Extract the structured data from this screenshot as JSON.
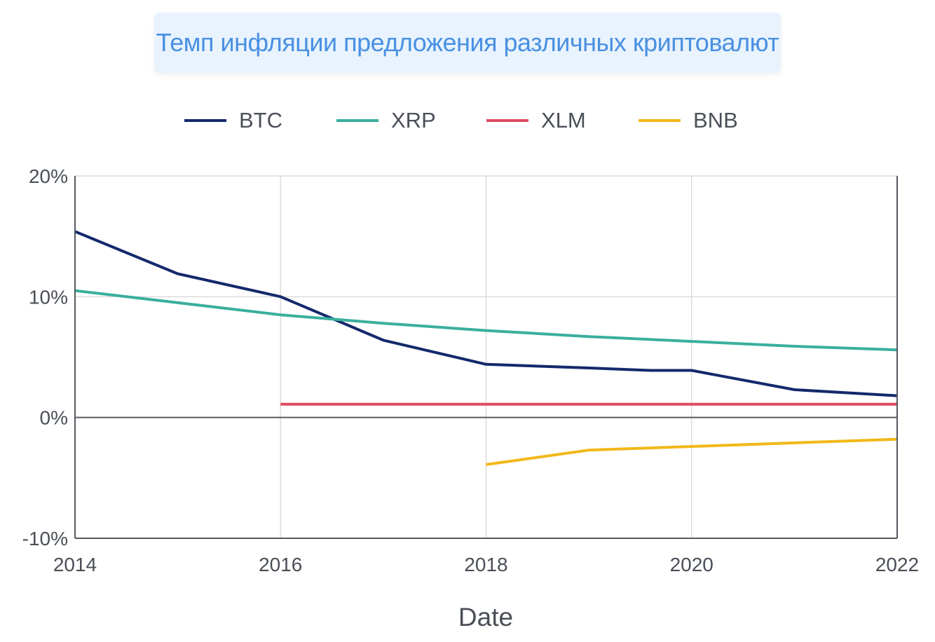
{
  "chart_data": {
    "type": "line",
    "title": "Темп инфляции предложения различных криптовалют",
    "xlabel": "Date",
    "ylabel": "",
    "xlim": [
      2014,
      2022
    ],
    "ylim": [
      -10,
      20
    ],
    "x_ticks": [
      "2014",
      "2016",
      "2018",
      "2020",
      "2022"
    ],
    "y_ticks": [
      {
        "value": 20,
        "label": "20%"
      },
      {
        "value": 10,
        "label": "10%"
      },
      {
        "value": 0,
        "label": "0%"
      },
      {
        "value": -10,
        "label": "-10%"
      }
    ],
    "grid": true,
    "legend_position": "top",
    "series": [
      {
        "name": "BTC",
        "color": "#13296b",
        "points": [
          [
            2014,
            15.4
          ],
          [
            2015,
            11.9
          ],
          [
            2016,
            10.0
          ],
          [
            2017,
            6.4
          ],
          [
            2018,
            4.4
          ],
          [
            2019,
            4.1
          ],
          [
            2019.6,
            3.9
          ],
          [
            2020,
            3.9
          ],
          [
            2021,
            2.3
          ],
          [
            2022,
            1.8
          ]
        ]
      },
      {
        "name": "XRP",
        "color": "#3aaf9c",
        "points": [
          [
            2014,
            10.5
          ],
          [
            2015,
            9.5
          ],
          [
            2016,
            8.5
          ],
          [
            2017,
            7.8
          ],
          [
            2018,
            7.2
          ],
          [
            2019,
            6.7
          ],
          [
            2020,
            6.3
          ],
          [
            2021,
            5.9
          ],
          [
            2022,
            5.6
          ]
        ]
      },
      {
        "name": "XLM",
        "color": "#dd4b5e",
        "points": [
          [
            2016,
            1.1
          ],
          [
            2022,
            1.1
          ]
        ]
      },
      {
        "name": "BNB",
        "color": "#f2b818",
        "points": [
          [
            2018,
            -3.9
          ],
          [
            2019,
            -2.7
          ],
          [
            2020,
            -2.4
          ],
          [
            2021,
            -2.1
          ],
          [
            2022,
            -1.8
          ]
        ]
      }
    ]
  }
}
